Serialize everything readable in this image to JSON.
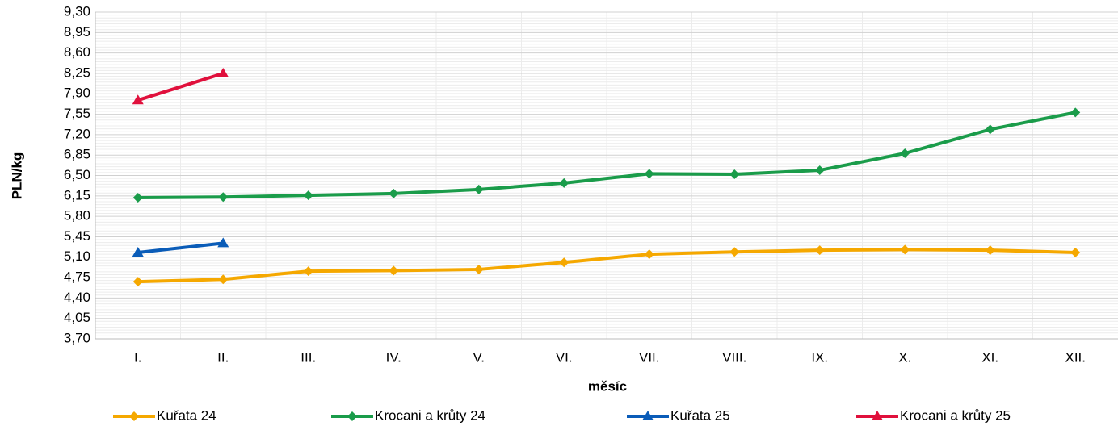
{
  "chart_data": {
    "type": "line",
    "ylabel": "PLN/kg",
    "xlabel": "měsíc",
    "categories": [
      "I.",
      "II.",
      "III.",
      "IV.",
      "V.",
      "VI.",
      "VII.",
      "VIII.",
      "IX.",
      "X.",
      "XI.",
      "XII."
    ],
    "series": [
      {
        "name": "Kuřata 24",
        "color": "#f5a800",
        "marker": "diamond",
        "values": [
          4.68,
          4.72,
          4.86,
          4.87,
          4.89,
          5.01,
          5.15,
          5.19,
          5.22,
          5.23,
          5.22,
          5.18
        ]
      },
      {
        "name": "Krocani a krůty 24",
        "color": "#1a9c4a",
        "marker": "diamond",
        "values": [
          6.12,
          6.13,
          6.16,
          6.19,
          6.26,
          6.37,
          6.53,
          6.52,
          6.59,
          6.88,
          7.29,
          7.58
        ]
      },
      {
        "name": "Kuřata 25",
        "color": "#0a5cb8",
        "marker": "triangle",
        "values": [
          5.18,
          5.34,
          null,
          null,
          null,
          null,
          null,
          null,
          null,
          null,
          null,
          null
        ]
      },
      {
        "name": "Krocani a krůty 25",
        "color": "#e0103c",
        "marker": "triangle",
        "values": [
          7.79,
          8.25,
          null,
          null,
          null,
          null,
          null,
          null,
          null,
          null,
          null,
          null
        ]
      }
    ],
    "ylim": [
      3.7,
      9.3
    ],
    "yticks": [
      {
        "value": 3.7,
        "label": "3,70"
      },
      {
        "value": 4.05,
        "label": "4,05"
      },
      {
        "value": 4.4,
        "label": "4,40"
      },
      {
        "value": 4.75,
        "label": "4,75"
      },
      {
        "value": 5.1,
        "label": "5,10"
      },
      {
        "value": 5.45,
        "label": "5,45"
      },
      {
        "value": 5.8,
        "label": "5,80"
      },
      {
        "value": 6.15,
        "label": "6,15"
      },
      {
        "value": 6.5,
        "label": "6,50"
      },
      {
        "value": 6.85,
        "label": "6,85"
      },
      {
        "value": 7.2,
        "label": "7,20"
      },
      {
        "value": 7.55,
        "label": "7,55"
      },
      {
        "value": 7.9,
        "label": "7,90"
      },
      {
        "value": 8.25,
        "label": "8,25"
      },
      {
        "value": 8.6,
        "label": "8,60"
      },
      {
        "value": 8.95,
        "label": "8,95"
      },
      {
        "value": 9.3,
        "label": "9,30"
      }
    ],
    "grid": true,
    "legend": "bottom"
  }
}
